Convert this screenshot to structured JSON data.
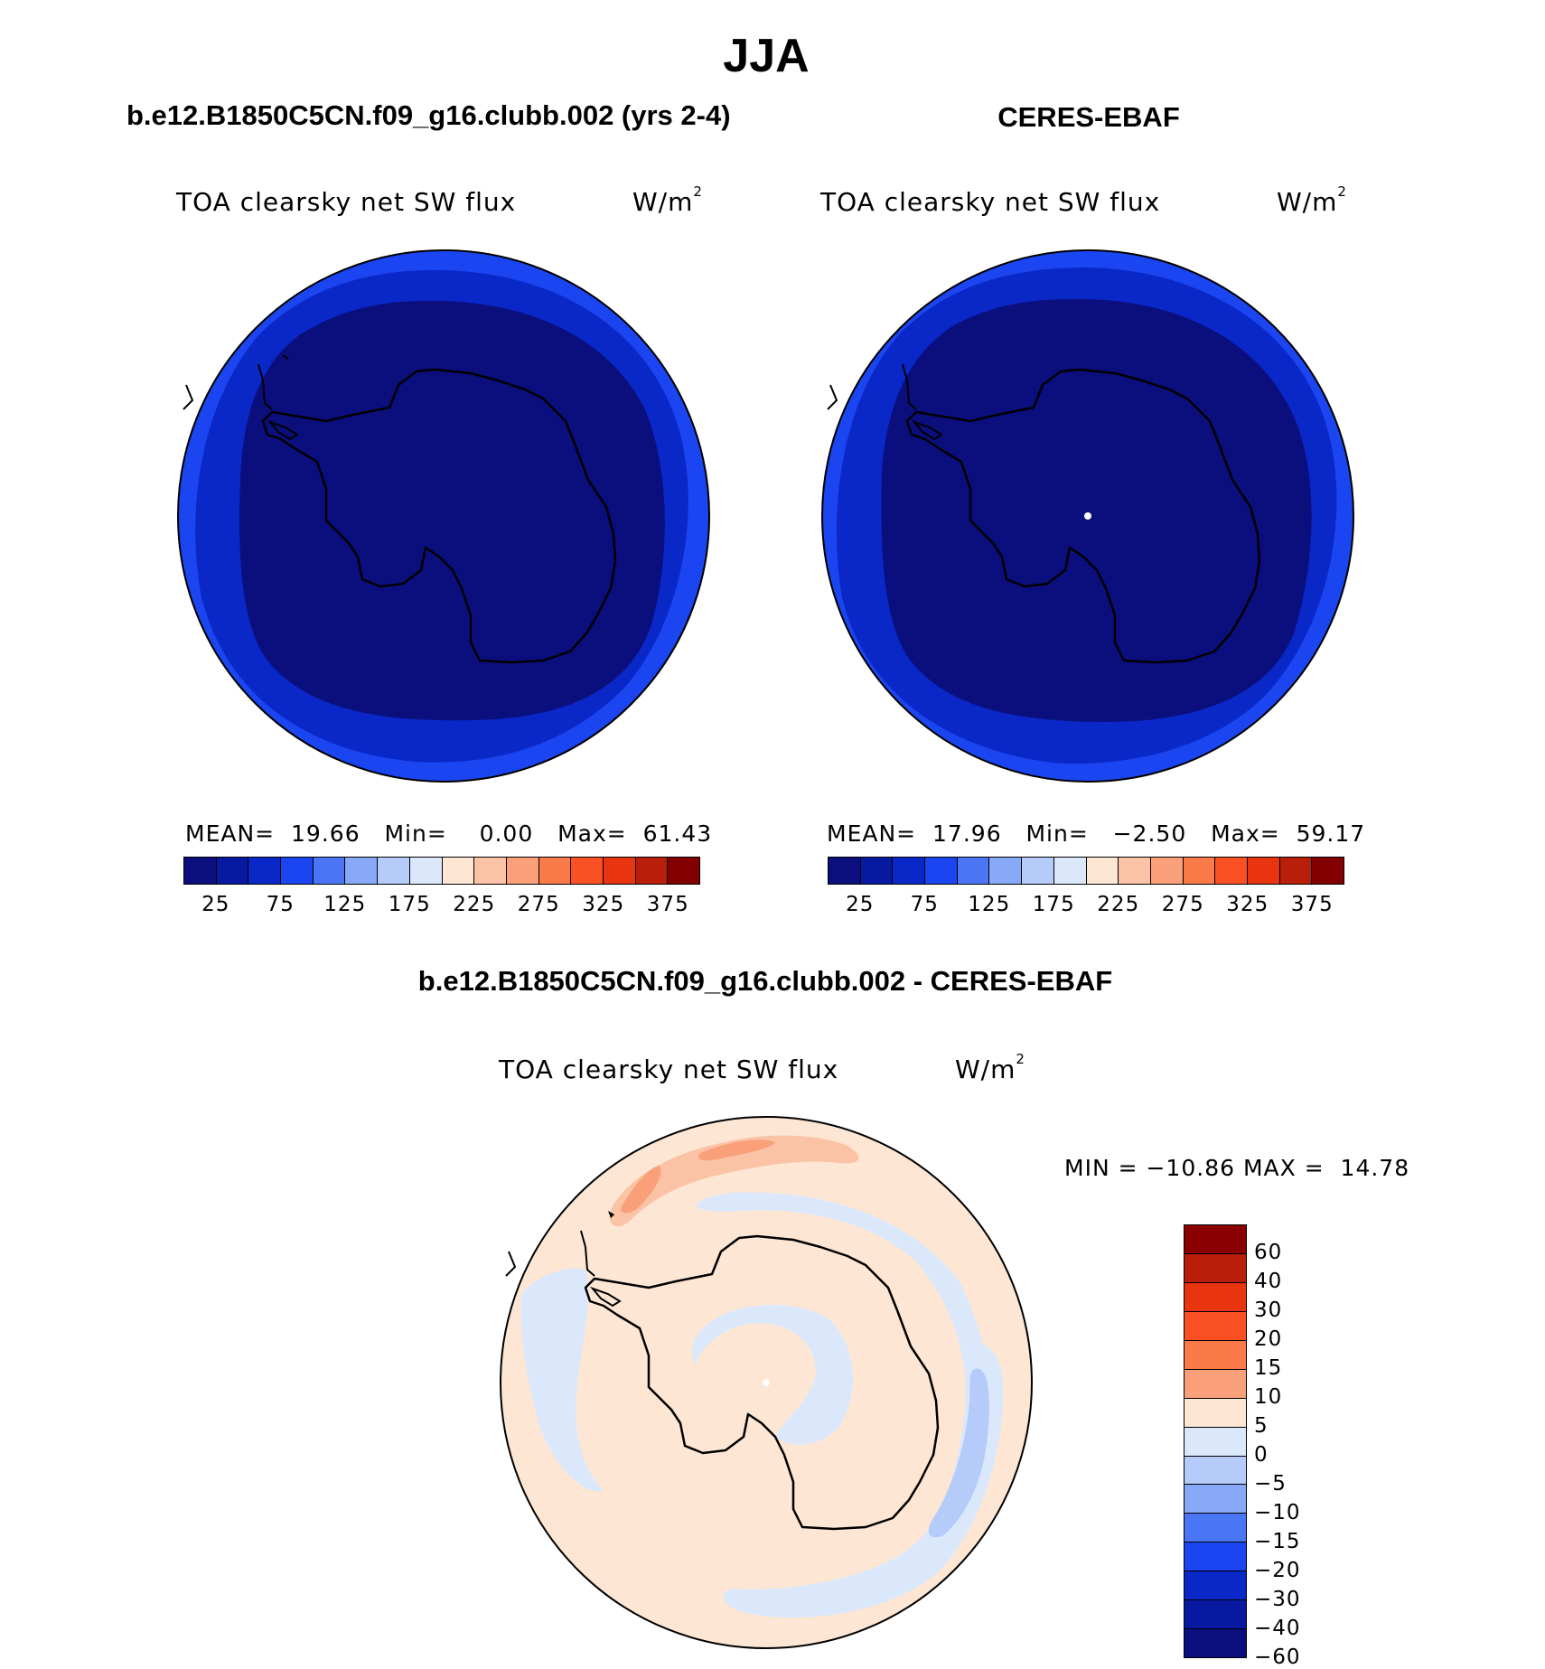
{
  "title": "JJA",
  "panels": [
    {
      "heading": "b.e12.B1850C5CN.f09_g16.clubb.002 (yrs 2-4)",
      "variable": "TOA clearsky net SW flux",
      "units_base": "W/m",
      "units_exp": "2",
      "stats": {
        "mean_label": "MEAN=",
        "mean": "19.66",
        "min_label": "Min=",
        "min": "0.00",
        "max_label": "Max=",
        "max": "61.43"
      }
    },
    {
      "heading": "CERES-EBAF",
      "variable": "TOA clearsky net SW flux",
      "units_base": "W/m",
      "units_exp": "2",
      "stats": {
        "mean_label": "MEAN=",
        "mean": "17.96",
        "min_label": "Min=",
        "min": "−2.50",
        "max_label": "Max=",
        "max": "59.17"
      }
    }
  ],
  "diff_panel": {
    "heading": "b.e12.B1850C5CN.f09_g16.clubb.002 - CERES-EBAF",
    "variable": "TOA clearsky net SW flux",
    "units_base": "W/m",
    "units_exp": "2",
    "minmax": "MIN = −10.86 MAX =  14.78"
  },
  "top_colorbar": {
    "colors": [
      "#0a0f7d",
      "#0619a0",
      "#0a27c8",
      "#1a45f0",
      "#4a76f5",
      "#88a8f8",
      "#b5cbfa",
      "#dbe8fc",
      "#fde6d3",
      "#fbc3a5",
      "#f9a07b",
      "#fa7a49",
      "#fb5024",
      "#e8350f",
      "#b81e0a",
      "#820000"
    ],
    "ticks": [
      "25",
      "75",
      "125",
      "175",
      "225",
      "275",
      "325",
      "375"
    ]
  },
  "diff_colorbar": {
    "colors": [
      "#8a0000",
      "#b81e0a",
      "#e8350f",
      "#fb5024",
      "#fa7a49",
      "#f9a07b",
      "#fde6d3",
      "#dbe8fc",
      "#b5cbfa",
      "#88a8f8",
      "#4a76f5",
      "#1a45f0",
      "#0a27c8",
      "#0619a0",
      "#0a0f7d"
    ],
    "ticks": [
      "60",
      "40",
      "30",
      "20",
      "15",
      "10",
      "5",
      "0",
      "−5",
      "−10",
      "−15",
      "−20",
      "−30",
      "−40",
      "−60"
    ]
  },
  "map_colors": {
    "ring_outer": "#1a45f0",
    "ring_mid": "#0a27c8",
    "interior": "#0a0f7d",
    "diff_background": "#fde6d3",
    "diff_light_blue": "#dbe8fc",
    "diff_mid_blue": "#b5cbfa",
    "diff_pink": "#fbc3a5",
    "diff_orange": "#f9a07b"
  }
}
